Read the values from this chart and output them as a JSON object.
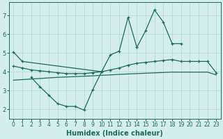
{
  "xlabel": "Humidex (Indice chaleur)",
  "x": [
    0,
    1,
    2,
    3,
    4,
    5,
    6,
    7,
    8,
    9,
    10,
    11,
    12,
    13,
    14,
    15,
    16,
    17,
    18,
    19,
    20,
    21,
    22,
    23
  ],
  "line1_x": [
    0,
    1,
    10,
    11,
    12,
    13,
    14,
    15,
    16,
    17,
    18,
    19
  ],
  "line1_y": [
    5.05,
    4.55,
    4.0,
    4.9,
    5.1,
    6.9,
    5.3,
    6.2,
    7.3,
    6.65,
    5.5,
    5.5
  ],
  "line2_x": [
    2,
    3,
    4,
    5,
    6,
    7,
    8,
    9,
    10
  ],
  "line2_y": [
    3.7,
    3.2,
    2.75,
    2.3,
    2.15,
    2.15,
    1.95,
    3.05,
    4.0
  ],
  "line3_x": [
    0,
    1,
    2,
    3,
    4,
    5,
    6,
    7,
    8,
    9,
    10,
    11,
    12,
    13,
    14,
    15,
    16,
    17,
    18,
    19,
    20,
    21,
    22,
    23
  ],
  "line3_y": [
    4.3,
    4.2,
    4.1,
    4.05,
    4.0,
    3.95,
    3.9,
    3.9,
    3.9,
    3.95,
    4.0,
    4.1,
    4.2,
    4.35,
    4.45,
    4.5,
    4.55,
    4.6,
    4.65,
    4.55,
    4.55,
    4.55,
    4.55,
    3.95
  ],
  "line4_x": [
    0,
    1,
    2,
    3,
    4,
    5,
    6,
    7,
    8,
    9,
    10,
    11,
    12,
    13,
    14,
    15,
    16,
    17,
    18,
    19,
    20,
    21,
    22,
    23
  ],
  "line4_y": [
    3.55,
    3.58,
    3.61,
    3.64,
    3.67,
    3.7,
    3.72,
    3.74,
    3.76,
    3.78,
    3.81,
    3.83,
    3.86,
    3.88,
    3.9,
    3.92,
    3.94,
    3.96,
    3.98,
    3.98,
    3.98,
    3.98,
    3.98,
    3.83
  ],
  "line_color": "#1a6b5a",
  "bg_color": "#d4eeeb",
  "grid_color": "#b0d8d4",
  "ylim": [
    1.5,
    7.7
  ],
  "xlim": [
    -0.5,
    23.5
  ],
  "yticks": [
    2,
    3,
    4,
    5,
    6,
    7
  ],
  "xticks": [
    0,
    1,
    2,
    3,
    4,
    5,
    6,
    7,
    8,
    9,
    10,
    11,
    12,
    13,
    14,
    15,
    16,
    17,
    18,
    19,
    20,
    21,
    22,
    23
  ]
}
